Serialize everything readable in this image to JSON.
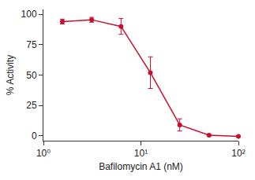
{
  "chart_data": {
    "type": "line",
    "x_label": "Bafilomycin A1 (nM)",
    "y_label": "% Activity",
    "x": [
      1.5625,
      3.125,
      6.25,
      12.5,
      25,
      50,
      100
    ],
    "values": [
      94,
      95.5,
      90,
      52,
      9,
      0.5,
      -0.5
    ],
    "errors": [
      2,
      2,
      6.5,
      13,
      5,
      0.5,
      0.5
    ],
    "color": "#c8102e",
    "marker": "circle",
    "line_style": "solid",
    "log": "x",
    "grid": false,
    "xlim": [
      1,
      100
    ],
    "xticks": [
      {
        "value": 1,
        "label": "10⁰"
      },
      {
        "value": 10,
        "label": "10¹"
      },
      {
        "value": 100,
        "label": "10²"
      }
    ],
    "ylim": [
      -4,
      104
    ],
    "yticks": [
      0,
      25,
      50,
      75,
      100
    ]
  }
}
